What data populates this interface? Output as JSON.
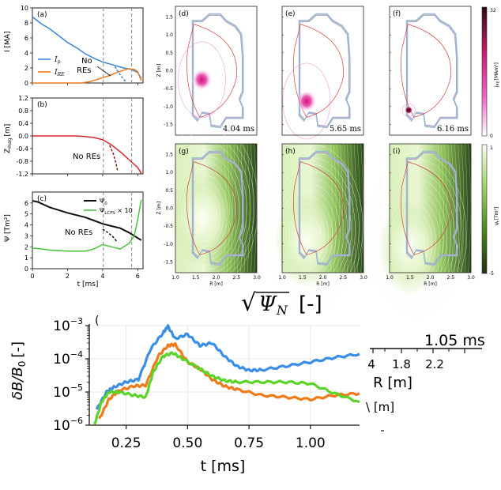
{
  "chart_data": [
    {
      "id": "a",
      "type": "line",
      "panel_label": "(a)",
      "xlabel": "",
      "ylabel": "I [MA]",
      "xlim": [
        0,
        6.3
      ],
      "ylim": [
        0,
        10
      ],
      "yticks": [
        0,
        2,
        4,
        6,
        8,
        10
      ],
      "xticks": [
        0,
        2,
        4,
        6
      ],
      "vlines": [
        4.04,
        5.65
      ],
      "series": [
        {
          "name": "I_p",
          "label_main": "I",
          "label_sub": "p",
          "color": "#3a86d8",
          "dashed_after": 4.7,
          "x": [
            0,
            0.5,
            1,
            1.5,
            2,
            2.5,
            3,
            3.5,
            4,
            4.3,
            4.6,
            4.9,
            5.2,
            5.65,
            6.0,
            6.2
          ],
          "y": [
            8.8,
            7.9,
            7.2,
            6.3,
            5.4,
            4.7,
            3.9,
            3.3,
            2.8,
            2.6,
            2.4,
            2.2,
            2.0,
            1.8,
            1.4,
            0.6
          ]
        },
        {
          "name": "I_RE",
          "label_main": "I",
          "label_sub": "RE",
          "color": "#f07a1a",
          "x": [
            0,
            2.8,
            3.2,
            3.6,
            4.0,
            4.4,
            4.8,
            5.2,
            5.5,
            5.8,
            6.0,
            6.2
          ],
          "y": [
            0,
            0,
            0.15,
            0.4,
            0.7,
            1.0,
            1.4,
            1.7,
            1.9,
            1.8,
            1.5,
            0.3
          ]
        },
        {
          "name": "I_p No REs",
          "color": "#3a86d8",
          "dashed": true,
          "x": [
            4.7,
            4.9,
            5.1,
            5.3
          ],
          "y": [
            2.2,
            1.4,
            0.8,
            0.2
          ]
        }
      ],
      "annotation": "No\nREs"
    },
    {
      "id": "b",
      "type": "line",
      "panel_label": "(b)",
      "ylabel_main": "Z",
      "ylabel_sub": "mag",
      "ylabel_unit": "[m]",
      "xlim": [
        0,
        6.3
      ],
      "ylim": [
        -1.2,
        1.2
      ],
      "yticks": [
        -1.2,
        -0.8,
        -0.4,
        0.0,
        0.4,
        0.8,
        1.2
      ],
      "vlines": [
        4.04,
        5.65
      ],
      "series": [
        {
          "name": "Z_mag",
          "color": "#d62728",
          "x": [
            0,
            2.5,
            3.0,
            3.5,
            4.0,
            4.5,
            5.0,
            5.5,
            6.0,
            6.2
          ],
          "y": [
            0,
            0,
            -0.02,
            -0.05,
            -0.12,
            -0.28,
            -0.5,
            -0.75,
            -1.0,
            -1.18
          ]
        },
        {
          "name": "Z_mag No REs",
          "color": "#8b1a1a",
          "dashed": true,
          "x": [
            4.4,
            4.6,
            4.75,
            4.85
          ],
          "y": [
            -0.3,
            -0.55,
            -0.85,
            -1.1
          ]
        }
      ],
      "annotation": "No REs"
    },
    {
      "id": "c",
      "type": "line",
      "panel_label": "(c)",
      "ylabel": "Ψ [Tm²]",
      "xlabel": "t [ms]",
      "xlim": [
        0,
        6.3
      ],
      "ylim": [
        0,
        7
      ],
      "yticks": [
        0,
        1,
        2,
        3,
        4,
        5,
        6
      ],
      "xticks": [
        0,
        2,
        4,
        6
      ],
      "vlines": [
        4.04,
        5.65
      ],
      "series": [
        {
          "name": "Ψ_0",
          "label_main": "Ψ",
          "label_sub": "0",
          "color": "#111111",
          "x": [
            0,
            0.3,
            1,
            2,
            3,
            3.5,
            4,
            4.5,
            5,
            5.5,
            6.0,
            6.2
          ],
          "y": [
            6.2,
            6.1,
            5.6,
            5.1,
            4.7,
            4.4,
            4.1,
            3.9,
            3.7,
            3.3,
            2.8,
            2.6
          ]
        },
        {
          "name": "Ψ_LCFS × 10",
          "label_main": "Ψ",
          "label_sub": "LCFS",
          "label_tail": " × 10",
          "color": "#44c43a",
          "x": [
            0,
            1,
            2,
            3,
            3.5,
            4.0,
            4.5,
            5.0,
            5.5,
            5.8,
            6.0,
            6.2
          ],
          "y": [
            1.9,
            1.7,
            1.6,
            1.6,
            1.8,
            2.2,
            2.0,
            1.8,
            2.3,
            3.0,
            4.5,
            6.3
          ]
        },
        {
          "name": "Ψ No REs",
          "color": "#111111",
          "dashed": true,
          "x": [
            4.0,
            4.3,
            4.6,
            4.8
          ],
          "y": [
            3.6,
            3.3,
            2.9,
            2.5
          ]
        }
      ],
      "annotation": "No REs"
    },
    {
      "id": "main",
      "type": "line",
      "panel_label": "(",
      "xlabel": "t [ms]",
      "ylabel_main": "δB/B",
      "ylabel_sub": "0",
      "ylabel_unit": "[-]",
      "yscale": "log",
      "xlim": [
        0.1,
        1.2
      ],
      "ylim": [
        1e-06,
        0.001
      ],
      "xticks": [
        0.25,
        0.5,
        0.75,
        1.0
      ],
      "xticklabels": [
        "0.25",
        "0.50",
        "0.75",
        "1.00"
      ],
      "ytick_exponents": [
        -3,
        -4,
        -5,
        -6
      ],
      "series": [
        {
          "name": "blue",
          "color": "#3a8ee6",
          "x": [
            0.13,
            0.17,
            0.2,
            0.25,
            0.3,
            0.35,
            0.4,
            0.42,
            0.45,
            0.5,
            0.55,
            0.6,
            0.65,
            0.7,
            0.75,
            0.8,
            0.9,
            1.0,
            1.1,
            1.2
          ],
          "y": [
            3e-06,
            1e-05,
            1.4e-05,
            2e-05,
            2.4e-05,
            0.0002,
            0.0006,
            0.00095,
            0.0004,
            0.00055,
            0.00025,
            0.0003,
            0.00012,
            6e-05,
            4.5e-05,
            4.6e-05,
            6e-05,
            8e-05,
            0.00011,
            0.00014
          ]
        },
        {
          "name": "orange",
          "color": "#f07a1a",
          "x": [
            0.14,
            0.18,
            0.22,
            0.28,
            0.33,
            0.38,
            0.42,
            0.45,
            0.5,
            0.55,
            0.6,
            0.65,
            0.7,
            0.8,
            0.9,
            1.0,
            1.1,
            1.2
          ],
          "y": [
            1.5e-06,
            6e-06,
            1.1e-05,
            1.5e-05,
            1.6e-05,
            0.00012,
            0.00025,
            0.00027,
            8e-05,
            5e-05,
            2.4e-05,
            1.5e-05,
            1.2e-05,
            8e-06,
            7e-06,
            6e-06,
            8e-06,
            9e-06
          ]
        },
        {
          "name": "green",
          "color": "#5ad428",
          "x": [
            0.12,
            0.15,
            0.18,
            0.22,
            0.28,
            0.33,
            0.36,
            0.4,
            0.44,
            0.48,
            0.55,
            0.6,
            0.65,
            0.7,
            0.8,
            0.9,
            1.0,
            1.1,
            1.2
          ],
          "y": [
            1e-06,
            5e-06,
            1e-05,
            1e-05,
            8e-06,
            7e-06,
            4e-05,
            0.00012,
            0.00015,
            0.0001,
            5e-05,
            3e-05,
            2.2e-05,
            2e-05,
            2e-05,
            2e-05,
            1.8e-05,
            9e-06,
            5e-06
          ]
        }
      ]
    }
  ],
  "contour_panels": [
    {
      "id": "d",
      "label": "(d)",
      "time": "4.04 ms",
      "blob": {
        "r": 1.65,
        "z": -0.25,
        "size": "large"
      }
    },
    {
      "id": "e",
      "label": "(e)",
      "time": "5.65 ms",
      "blob": {
        "r": 1.6,
        "z": -0.85,
        "size": "large"
      }
    },
    {
      "id": "f",
      "label": "(f)",
      "time": "6.16 ms",
      "blob": {
        "r": 1.47,
        "z": -1.1,
        "size": "small"
      }
    },
    {
      "id": "g",
      "label": "(g)"
    },
    {
      "id": "h",
      "label": "(h)"
    },
    {
      "id": "i",
      "label": "(i)"
    }
  ],
  "contour_axes": {
    "zlabel": "Z [m]",
    "rlabel": "R [m]",
    "zticks": [
      "1.5",
      "1.0",
      "0.5",
      "0.0",
      "-0.5",
      "-1.0",
      "-1.5"
    ],
    "rticks": [
      "1.0",
      "1.5",
      "2.0",
      "2.5",
      "3.0"
    ]
  },
  "colorbars": [
    {
      "id": "jre",
      "label_main": "j",
      "label_sub": "RE",
      "label_unit": "[MAm²]",
      "max": "32",
      "min": "0",
      "colors": [
        "#2a0a12",
        "#c81b6e",
        "#ef68c6",
        "#ffffff"
      ]
    },
    {
      "id": "psi",
      "label_main": "ψ",
      "label_sub": "t",
      "label_unit": "[Tm²]",
      "max": "1",
      "min": "-5",
      "colors": [
        "#1e3114",
        "#4f8a1e",
        "#a6d86e",
        "#fafff2"
      ]
    }
  ],
  "psi_label": {
    "root": "√",
    "text": "Ψ",
    "sub": "N",
    "unit": "[-]"
  },
  "inset": {
    "ticks": [
      "4",
      "1.8",
      "2.2"
    ],
    "xlabel": "R [m]",
    "time_partial": "1.05 ms",
    "partial_unit": "\\ [m]"
  }
}
